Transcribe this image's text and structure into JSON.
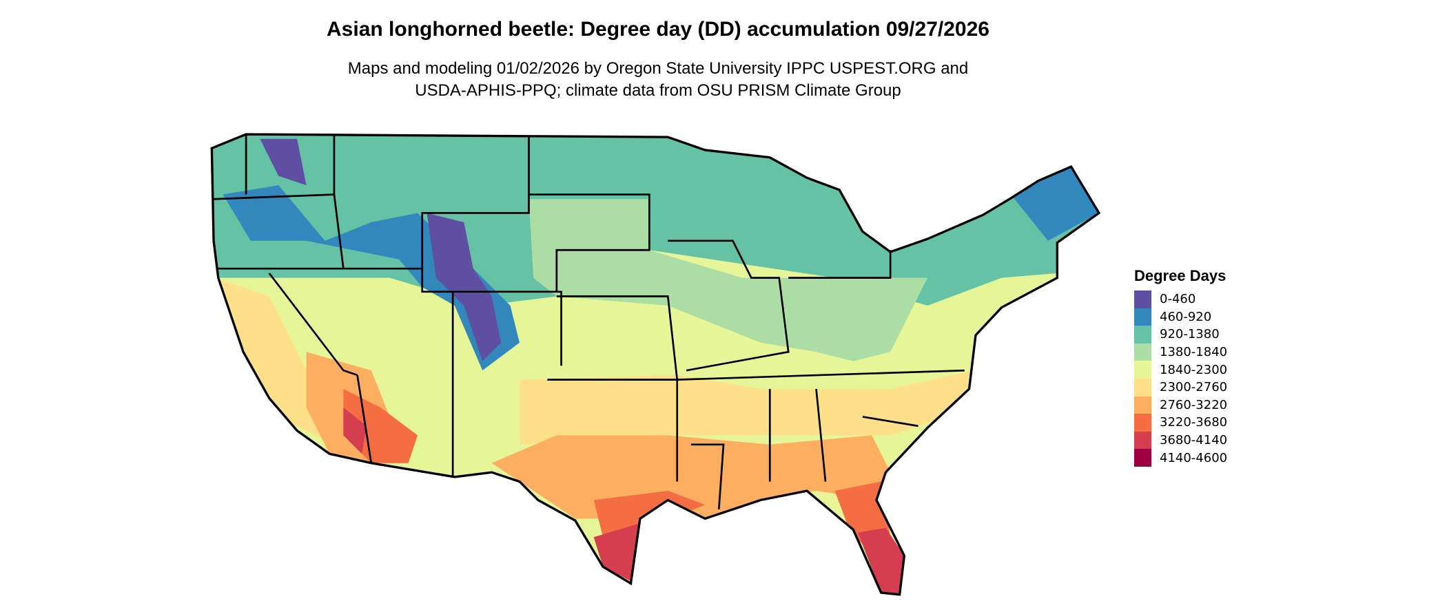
{
  "title": "Asian longhorned beetle: Degree day (DD) accumulation 09/27/2026",
  "subtitle_line1": "Maps and modeling 01/02/2026 by Oregon State University IPPC USPEST.ORG and",
  "subtitle_line2": "USDA-APHIS-PPQ; climate data from OSU PRISM Climate Group",
  "chart_data": {
    "type": "heatmap",
    "region": "Contiguous United States",
    "legend": {
      "title": "Degree Days",
      "placement": "right",
      "classes": [
        {
          "label": "0-460",
          "color": "#5E4FA2"
        },
        {
          "label": "460-920",
          "color": "#3288BD"
        },
        {
          "label": "920-1380",
          "color": "#66C2A5"
        },
        {
          "label": "1380-1840",
          "color": "#ABDDA4"
        },
        {
          "label": "1840-2300",
          "color": "#E6F598"
        },
        {
          "label": "2300-2760",
          "color": "#FEE08B"
        },
        {
          "label": "2760-3220",
          "color": "#FDAE61"
        },
        {
          "label": "3220-3680",
          "color": "#F46D43"
        },
        {
          "label": "3680-4140",
          "color": "#D53E4F"
        },
        {
          "label": "4140-4600",
          "color": "#9E0142"
        }
      ]
    }
  }
}
